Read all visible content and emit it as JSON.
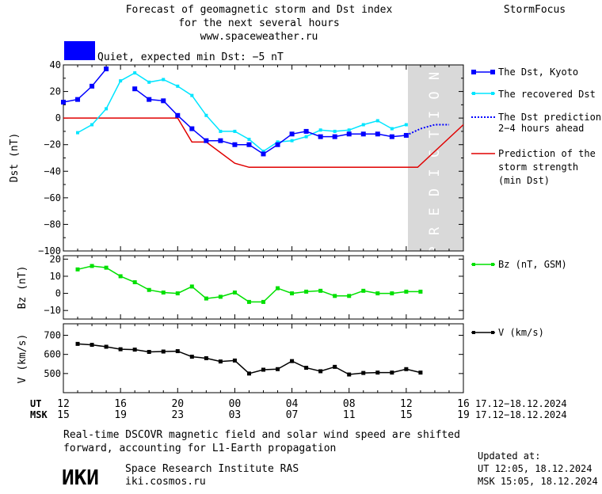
{
  "header": {
    "title_line1": "Forecast of geomagnetic storm and Dst index",
    "title_line2": "for the next several hours",
    "url": "www.spaceweather.ru",
    "brand": "StormFocus",
    "status_text": "Quiet, expected min Dst: −5 nT",
    "status_color": "#0000ff"
  },
  "prediction_label": "PREDICTION",
  "colors": {
    "dst_kyoto": "#0000ff",
    "dst_recovered": "#00e5ff",
    "dst_prediction": "#0000ff",
    "storm_strength": "#e00000",
    "bz": "#00e000",
    "v": "#000000",
    "prediction_band": "#d9d9d9"
  },
  "legend": {
    "dst_kyoto": "The Dst, Kyoto",
    "dst_recovered": "The recovered Dst",
    "dst_prediction": [
      "The Dst prediction",
      "2−4 hours ahead"
    ],
    "storm_strength": [
      "Prediction of the",
      "storm strength",
      "(min Dst)"
    ],
    "bz": "Bz (nT, GSM)",
    "v": "V (km/s)"
  },
  "time_axis": {
    "ut_label": "UT",
    "msk_label": "MSK",
    "ut_ticks": [
      "12",
      "16",
      "20",
      "00",
      "04",
      "08",
      "12",
      "16"
    ],
    "msk_ticks": [
      "15",
      "19",
      "23",
      "03",
      "07",
      "11",
      "15",
      "19"
    ],
    "ut_range": "17.12−18.12.2024",
    "msk_range": "17.12−18.12.2024"
  },
  "chart_data": [
    {
      "type": "line",
      "ylabel": "Dst (nT)",
      "ylim": [
        -100,
        40
      ],
      "yticks": [
        "40",
        "20",
        "0",
        "−20",
        "−40",
        "−60",
        "−80",
        "−100"
      ],
      "ytick_values": [
        40,
        20,
        0,
        -20,
        -40,
        -60,
        -80,
        -100
      ],
      "xlim_hours": [
        0,
        28
      ],
      "prediction_range_hours": [
        24,
        28
      ],
      "series": [
        {
          "name": "The Dst, Kyoto",
          "x": [
            0,
            1,
            2,
            3,
            5,
            6,
            7,
            8,
            9,
            10,
            11,
            12,
            13,
            14,
            15,
            16,
            17,
            18,
            19,
            20,
            21,
            22,
            23,
            24
          ],
          "values": [
            12,
            14,
            24,
            37,
            22,
            14,
            13,
            2,
            -8,
            -17,
            -17,
            -20,
            -20,
            -27,
            -20,
            -12,
            -10,
            -14,
            -14,
            -12,
            -12,
            -12,
            -14,
            -13
          ]
        },
        {
          "name": "The recovered Dst",
          "x": [
            1,
            2,
            3,
            4,
            5,
            6,
            7,
            8,
            9,
            10,
            11,
            12,
            13,
            14,
            15,
            16,
            17,
            18,
            19,
            20,
            21,
            22,
            23,
            24
          ],
          "values": [
            -11,
            -5,
            7,
            28,
            34,
            27,
            29,
            24,
            17,
            2,
            -10,
            -10,
            -16,
            -25,
            -18,
            -17,
            -14,
            -9,
            -10,
            -9,
            -5,
            -2,
            -8,
            -5
          ]
        },
        {
          "name": "The Dst prediction 2−4 hours ahead",
          "x": [
            24,
            25,
            26,
            27
          ],
          "values": [
            -13,
            -8,
            -5,
            -5
          ]
        },
        {
          "name": "Prediction of the storm strength (min Dst)",
          "x": [
            0,
            8,
            9,
            10,
            12,
            13,
            24.8,
            28
          ],
          "values": [
            0,
            0,
            -18,
            -18,
            -34,
            -37,
            -37,
            -5
          ]
        }
      ]
    },
    {
      "type": "line",
      "ylabel": "Bz (nT)",
      "ylim": [
        -15,
        22
      ],
      "yticks": [
        "20",
        "10",
        "0",
        "−10"
      ],
      "ytick_values": [
        20,
        10,
        0,
        -10
      ],
      "xlim_hours": [
        0,
        28
      ],
      "series": [
        {
          "name": "Bz (nT, GSM)",
          "x": [
            1,
            2,
            3,
            4,
            5,
            6,
            7,
            8,
            9,
            10,
            11,
            12,
            13,
            14,
            15,
            16,
            17,
            18,
            19,
            20,
            21,
            22,
            23,
            24,
            25
          ],
          "values": [
            14,
            16,
            15,
            10,
            6.5,
            2,
            0.5,
            0,
            4,
            -3,
            -2,
            0.5,
            -5,
            -5,
            3,
            0,
            1,
            1.5,
            -1.5,
            -1.5,
            1.5,
            0,
            0,
            1,
            1
          ]
        }
      ]
    },
    {
      "type": "line",
      "ylabel": "V (km/s)",
      "ylim": [
        400,
        760
      ],
      "yticks": [
        "700",
        "600",
        "500"
      ],
      "ytick_values": [
        700,
        600,
        500
      ],
      "xlim_hours": [
        0,
        28
      ],
      "series": [
        {
          "name": "V (km/s)",
          "x": [
            1,
            2,
            3,
            4,
            5,
            6,
            7,
            8,
            9,
            10,
            11,
            12,
            13,
            14,
            15,
            16,
            17,
            18,
            19,
            20,
            21,
            22,
            23,
            24,
            25
          ],
          "values": [
            655,
            650,
            640,
            627,
            625,
            613,
            615,
            617,
            588,
            580,
            563,
            568,
            500,
            520,
            523,
            565,
            530,
            512,
            535,
            495,
            503,
            505,
            505,
            523,
            505
          ]
        }
      ]
    }
  ],
  "footer": {
    "note_line1": "Real-time DSCOVR magnetic field and solar wind speed are shifted",
    "note_line2": "forward, accounting for L1-Earth propagation",
    "org_logo": "ИКИ",
    "org_name": "Space Research Institute RAS",
    "org_url": "iki.cosmos.ru",
    "updated_label": "Updated at:",
    "updated_ut": "UT   12:05, 18.12.2024",
    "updated_msk": "MSK 15:05, 18.12.2024"
  }
}
